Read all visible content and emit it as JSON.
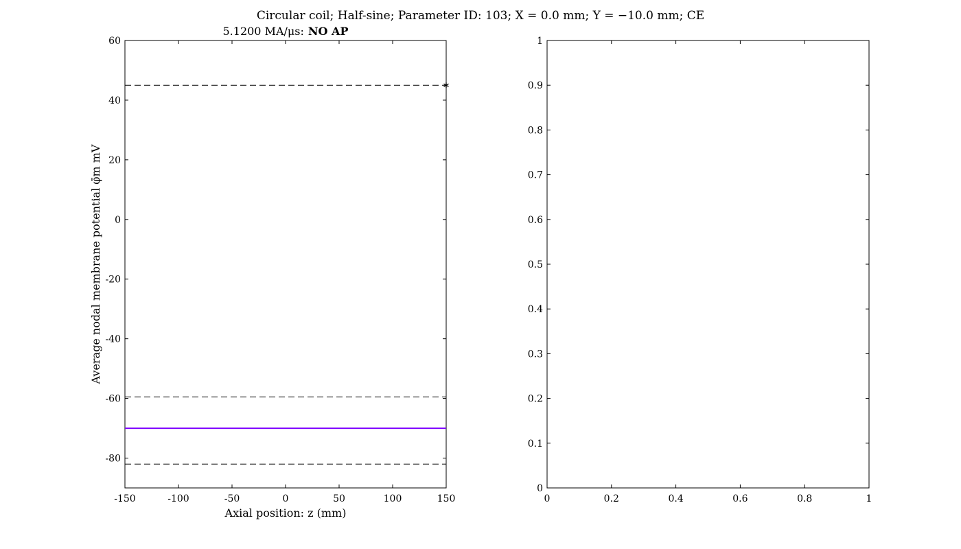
{
  "figure": {
    "title": "Circular coil; Half-sine; Parameter ID: 103; X = 0.0 mm; Y = −10.0 mm; CE",
    "background": "#ffffff"
  },
  "left_panel": {
    "subtitle_value": "5.1200 MA/μs:",
    "subtitle_status": "NO AP"
  },
  "chart_data": [
    {
      "type": "line",
      "title": "5.1200 MA/μs: NO AP",
      "xlabel": "Axial position: z (mm)",
      "ylabel": "Average nodal membrane potential φ̄m mV",
      "xlim": [
        -150,
        150
      ],
      "ylim": [
        -90,
        60
      ],
      "xticks": [
        -150,
        -100,
        -50,
        0,
        50,
        100,
        150
      ],
      "yticks": [
        -80,
        -60,
        -40,
        -20,
        0,
        20,
        40,
        60
      ],
      "grid": false,
      "series": [
        {
          "x": [
            -150,
            150
          ],
          "y": [
            -70,
            -70
          ],
          "color": "#8000ff",
          "style": "solid"
        }
      ],
      "reference_lines": [
        {
          "y": 45,
          "style": "dashed",
          "color": "#000000"
        },
        {
          "y": -59.5,
          "style": "dashed",
          "color": "#000000"
        },
        {
          "y": -82,
          "style": "dashed",
          "color": "#000000"
        }
      ],
      "markers": [
        {
          "x": 150,
          "y": 45,
          "symbol": "asterisk"
        }
      ]
    },
    {
      "type": "line",
      "title": "",
      "xlabel": "",
      "ylabel": "",
      "xlim": [
        0,
        1
      ],
      "ylim": [
        0,
        1
      ],
      "xticks": [
        0,
        0.2,
        0.4,
        0.6,
        0.8,
        1
      ],
      "yticks": [
        0,
        0.1,
        0.2,
        0.3,
        0.4,
        0.5,
        0.6,
        0.7,
        0.8,
        0.9,
        1
      ],
      "grid": false,
      "series": []
    }
  ]
}
